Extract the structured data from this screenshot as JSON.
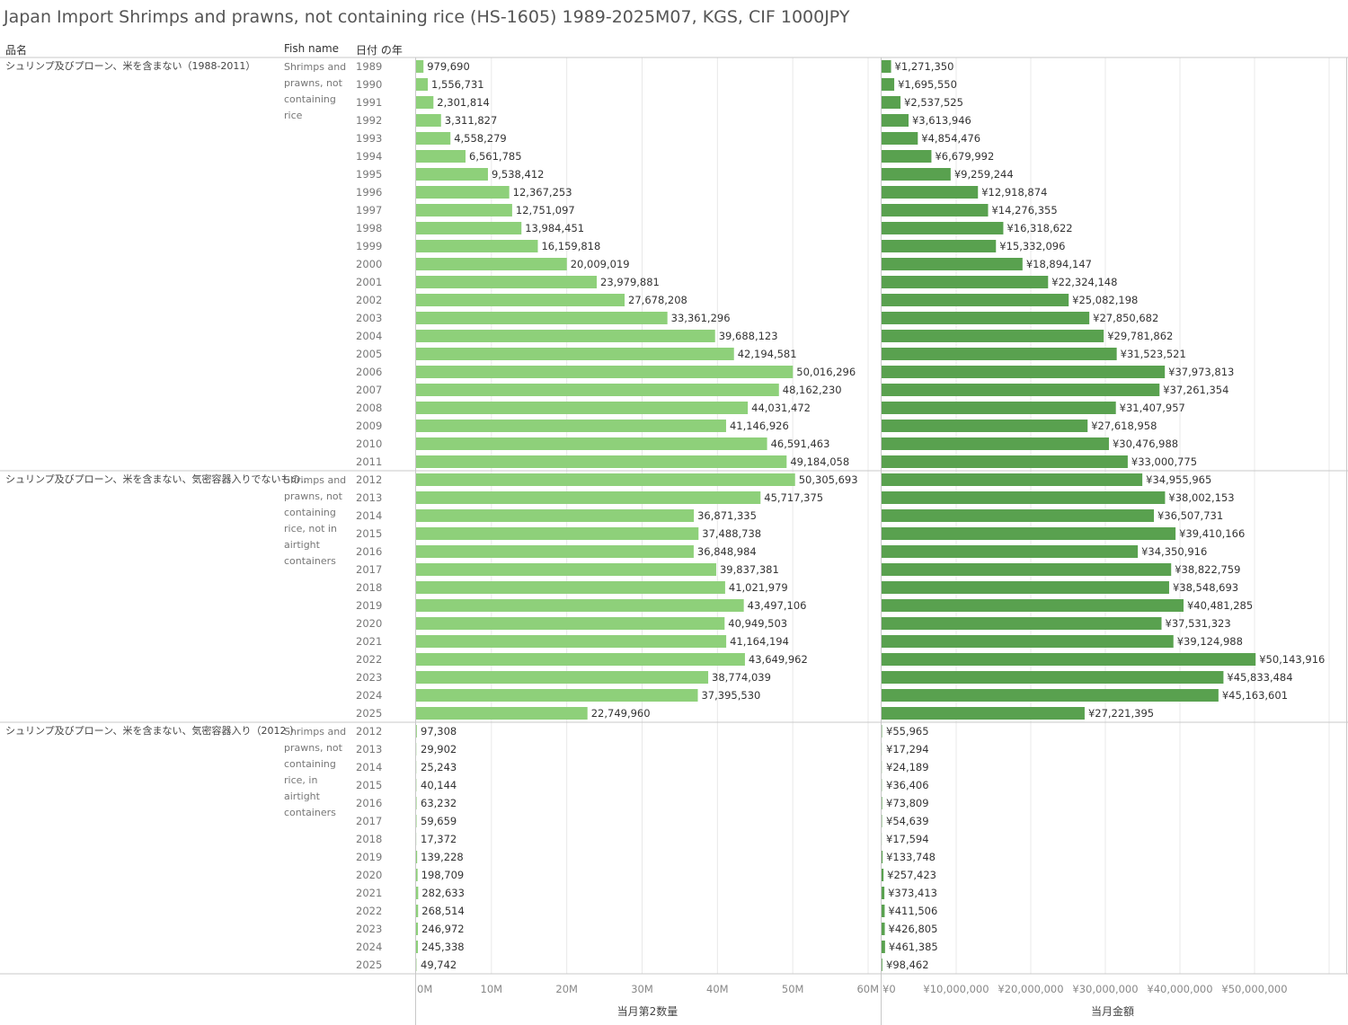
{
  "title": "Japan Import Shrimps and prawns, not containing rice (HS-1605) 1989-2025M07, KGS, CIF 1000JPY",
  "headers": {
    "hinmei": "品名",
    "fish_name": "Fish name",
    "year": "日付 の年"
  },
  "colors": {
    "qty_bar": "#8ed07a",
    "value_bar": "#59a14f",
    "grid": "#e8e8e8",
    "rule": "#c8c8c8"
  },
  "chart_data": {
    "type": "bar",
    "orientation": "horizontal",
    "groups": [
      {
        "category": "シュリンプ及びプローン、米を含まない（1988-2011）",
        "fish_name": [
          "Shrimps and",
          "prawns, not",
          "containing",
          "rice"
        ],
        "years": [
          1989,
          1990,
          1991,
          1992,
          1993,
          1994,
          1995,
          1996,
          1997,
          1998,
          1999,
          2000,
          2001,
          2002,
          2003,
          2004,
          2005,
          2006,
          2007,
          2008,
          2009,
          2010,
          2011
        ],
        "quantity": [
          979690,
          1556731,
          2301814,
          3311827,
          4558279,
          6561785,
          9538412,
          12367253,
          12751097,
          13984451,
          16159818,
          20009019,
          23979881,
          27678208,
          33361296,
          39688123,
          42194581,
          50016296,
          48162230,
          44031472,
          41146926,
          46591463,
          49184058
        ],
        "value": [
          1271350,
          1695550,
          2537525,
          3613946,
          4854476,
          6679992,
          9259244,
          12918874,
          14276355,
          16318622,
          15332096,
          18894147,
          22324148,
          25082198,
          27850682,
          29781862,
          31523521,
          37973813,
          37261354,
          31407957,
          27618958,
          30476988,
          33000775
        ]
      },
      {
        "category": "シュリンプ及びプローン、米を含まない、気密容器入りでないもの..",
        "fish_name": [
          "Shrimps and",
          "prawns, not",
          "containing",
          "rice, not in",
          "airtight",
          "containers"
        ],
        "years": [
          2012,
          2013,
          2014,
          2015,
          2016,
          2017,
          2018,
          2019,
          2020,
          2021,
          2022,
          2023,
          2024,
          2025
        ],
        "quantity": [
          50305693,
          45717375,
          36871335,
          37488738,
          36848984,
          39837381,
          41021979,
          43497106,
          40949503,
          41164194,
          43649962,
          38774039,
          37395530,
          22749960
        ],
        "value": [
          34955965,
          38002153,
          36507731,
          39410166,
          34350916,
          38822759,
          38548693,
          40481285,
          37531323,
          39124988,
          50143916,
          45833484,
          45163601,
          27221395
        ]
      },
      {
        "category": "シュリンプ及びプローン、米を含まない、気密容器入り（2012-）",
        "fish_name": [
          "Shrimps and",
          "prawns, not",
          "containing",
          "rice, in",
          "airtight",
          "containers"
        ],
        "years": [
          2012,
          2013,
          2014,
          2015,
          2016,
          2017,
          2018,
          2019,
          2020,
          2021,
          2022,
          2023,
          2024,
          2025
        ],
        "quantity": [
          97308,
          29902,
          25243,
          40144,
          63232,
          59659,
          17372,
          139228,
          198709,
          282633,
          268514,
          246972,
          245338,
          49742
        ],
        "value": [
          55965,
          17294,
          24189,
          36406,
          73809,
          54639,
          17594,
          133748,
          257423,
          373413,
          411506,
          426805,
          461385,
          98462
        ]
      }
    ],
    "axes": {
      "quantity": {
        "title": "当月第2数量",
        "range": [
          0,
          60000000
        ],
        "ticks": [
          0,
          10000000,
          20000000,
          30000000,
          40000000,
          50000000,
          60000000
        ],
        "tick_labels": [
          "0M",
          "10M",
          "20M",
          "30M",
          "40M",
          "50M",
          "60M"
        ]
      },
      "value": {
        "title": "当月金額",
        "range": [
          0,
          60000000
        ],
        "ticks": [
          0,
          10000000,
          20000000,
          30000000,
          40000000,
          50000000
        ],
        "tick_labels": [
          "¥0",
          "¥10,000,000",
          "¥20,000,000",
          "¥30,000,000",
          "¥40,000,000",
          "¥50,000,000"
        ]
      }
    },
    "value_prefix": "¥",
    "grid": true
  }
}
